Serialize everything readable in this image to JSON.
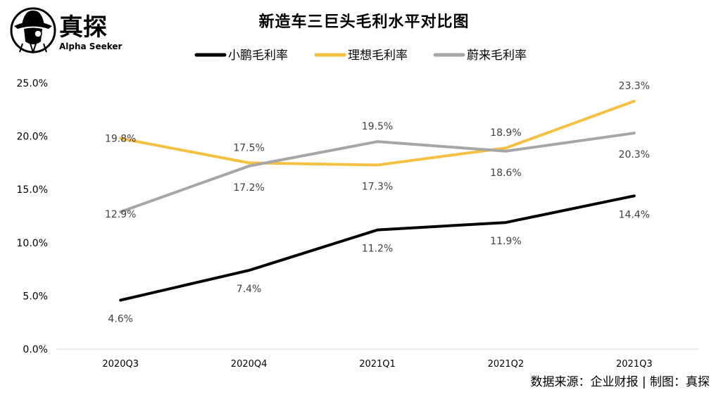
{
  "brand": {
    "name_cn": "真探",
    "name_en": "Alpha Seeker",
    "icon": "detective-icon"
  },
  "source_text": "数据来源：企业财报 | 制图：真探",
  "chart_data": {
    "type": "line",
    "title": "新造车三巨头毛利水平对比图",
    "categories": [
      "2020Q3",
      "2020Q4",
      "2021Q1",
      "2021Q2",
      "2021Q3"
    ],
    "yticks": [
      "0.0%",
      "5.0%",
      "10.0%",
      "15.0%",
      "20.0%",
      "25.0%"
    ],
    "ylim": [
      0,
      25
    ],
    "grid": false,
    "legend_position": "top",
    "series": [
      {
        "name": "小鹏毛利率",
        "color": "#000000",
        "values": [
          4.6,
          7.4,
          11.2,
          11.9,
          14.4
        ],
        "labels": [
          "4.6%",
          "7.4%",
          "11.2%",
          "11.9%",
          "14.4%"
        ]
      },
      {
        "name": "理想毛利率",
        "color": "#F5C142",
        "values": [
          19.8,
          17.5,
          17.3,
          18.9,
          23.3
        ],
        "labels": [
          "19.8%",
          "17.5%",
          "17.3%",
          "18.9%",
          "23.3%"
        ]
      },
      {
        "name": "蔚来毛利率",
        "color": "#A6A6A6",
        "values": [
          12.9,
          17.2,
          19.5,
          18.6,
          20.3
        ],
        "labels": [
          "12.9%",
          "17.2%",
          "19.5%",
          "18.6%",
          "20.3%"
        ]
      }
    ]
  }
}
